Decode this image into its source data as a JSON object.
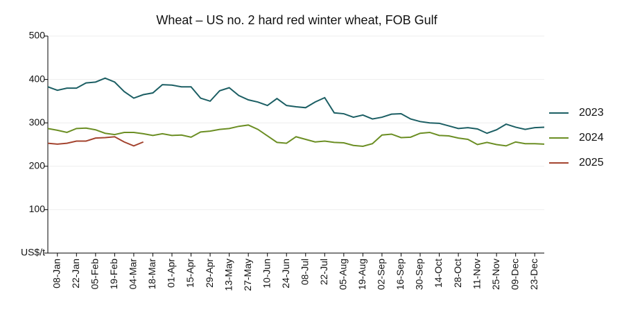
{
  "chart_data": {
    "type": "line",
    "title": "Wheat – US no. 2 hard red winter wheat, FOB Gulf",
    "categories": [
      null,
      "08-Jan",
      null,
      "22-Jan",
      null,
      "05-Feb",
      null,
      "19-Feb",
      null,
      "04-Mar",
      null,
      "18-Mar",
      null,
      "01-Apr",
      null,
      "15-Apr",
      null,
      "29-Apr",
      null,
      "13-May",
      null,
      "27-May",
      null,
      "10-Jun",
      null,
      "24-Jun",
      null,
      "08-Jul",
      null,
      "22-Jul",
      null,
      "05-Aug",
      null,
      "19-Aug",
      null,
      "02-Sep",
      null,
      "16-Sep",
      null,
      "30-Sep",
      null,
      "14-Oct",
      null,
      "28-Oct",
      null,
      "11-Nov",
      null,
      "25-Nov",
      null,
      "09-Dec",
      null,
      "23-Dec",
      null
    ],
    "series": [
      {
        "name": "2023",
        "color": "#1b5e63",
        "values": [
          383,
          375,
          380,
          380,
          392,
          394,
          403,
          394,
          372,
          357,
          365,
          369,
          388,
          387,
          383,
          383,
          357,
          350,
          374,
          381,
          363,
          353,
          348,
          340,
          356,
          340,
          337,
          335,
          348,
          358,
          323,
          321,
          313,
          318,
          309,
          313,
          320,
          321,
          309,
          303,
          300,
          299,
          293,
          287,
          289,
          286,
          276,
          284,
          297,
          290,
          285,
          289,
          290
        ]
      },
      {
        "name": "2024",
        "color": "#6b8e23",
        "values": [
          287,
          283,
          278,
          287,
          288,
          284,
          276,
          273,
          278,
          278,
          275,
          271,
          275,
          271,
          272,
          267,
          279,
          281,
          285,
          287,
          292,
          295,
          285,
          270,
          255,
          253,
          268,
          262,
          256,
          258,
          255,
          254,
          248,
          246,
          252,
          272,
          274,
          266,
          267,
          276,
          278,
          271,
          270,
          265,
          262,
          250,
          255,
          250,
          247,
          256,
          252,
          252,
          251
        ]
      },
      {
        "name": "2025",
        "color": "#a3432e",
        "values": [
          253,
          251,
          253,
          258,
          258,
          265,
          266,
          268,
          256,
          247,
          256,
          null,
          null,
          null,
          null,
          null,
          null,
          null,
          null,
          null,
          null,
          null,
          null,
          null,
          null,
          null,
          null,
          null,
          null,
          null,
          null,
          null,
          null,
          null,
          null,
          null,
          null,
          null,
          null,
          null,
          null,
          null,
          null,
          null,
          null,
          null,
          null,
          null,
          null,
          null,
          null,
          null,
          null
        ]
      }
    ],
    "ylim": [
      0,
      500
    ],
    "yticks": [
      {
        "value": 0,
        "label": "US$/t"
      },
      100,
      200,
      300,
      400,
      500
    ],
    "grid": true,
    "legend": "right"
  }
}
